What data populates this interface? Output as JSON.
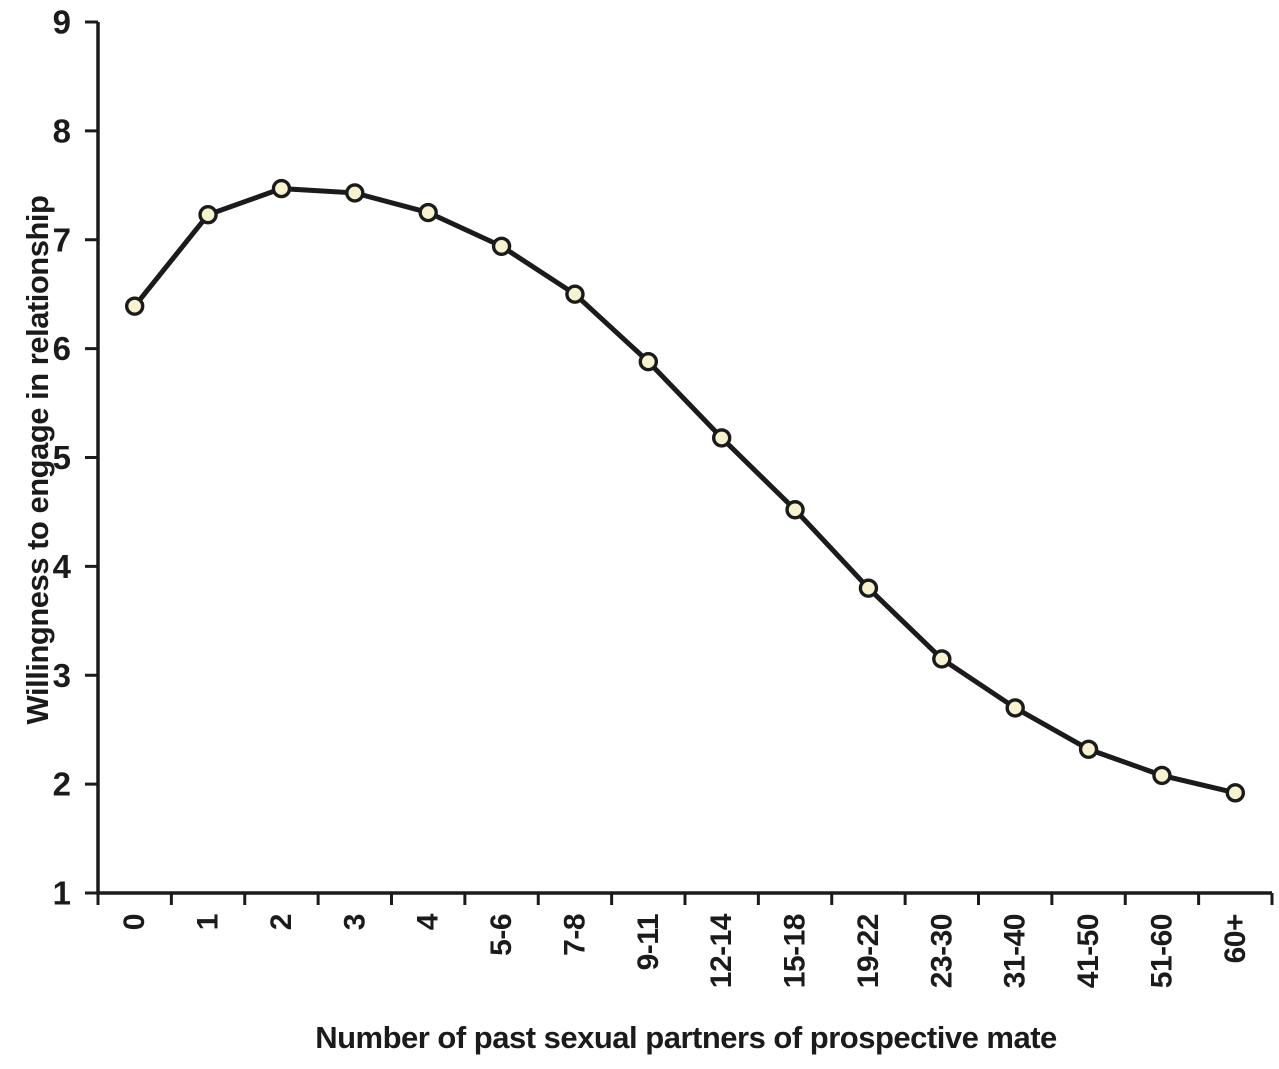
{
  "chart_data": {
    "type": "line",
    "title": "",
    "xlabel": "Number of past sexual partners of prospective mate",
    "ylabel": "Willingness to engage in relationship",
    "categories": [
      "0",
      "1",
      "2",
      "3",
      "4",
      "5-6",
      "7-8",
      "9-11",
      "12-14",
      "15-18",
      "19-22",
      "23-30",
      "31-40",
      "41-50",
      "51-60",
      "60+"
    ],
    "series": [
      {
        "name": "Willingness to engage in relationship",
        "values": [
          6.39,
          7.23,
          7.47,
          7.43,
          7.25,
          6.94,
          6.5,
          5.88,
          5.18,
          4.52,
          3.8,
          3.15,
          2.7,
          2.32,
          2.08,
          1.92
        ]
      }
    ],
    "ylim": [
      1,
      9
    ],
    "yticks": [
      1,
      2,
      3,
      4,
      5,
      6,
      7,
      8,
      9
    ],
    "grid": false,
    "legend": "none",
    "marker_shape": "circle",
    "colors": {
      "line": "#1b1b1b",
      "marker_fill": "#f7f3d0",
      "marker_stroke": "#1b1b1b",
      "axis": "#1b1b1b",
      "text": "#1b1b1b",
      "background": "#ffffff"
    }
  }
}
